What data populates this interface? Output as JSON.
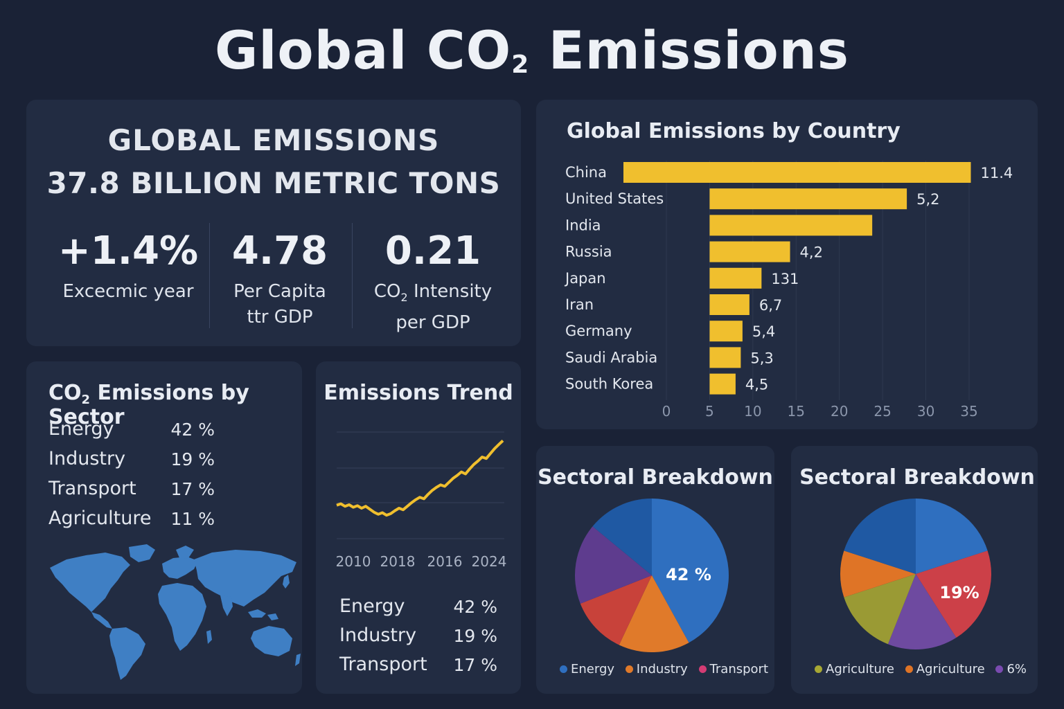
{
  "title_main": "Global CO",
  "title_sub": "2",
  "title_end": " Emissions",
  "summary": {
    "line1": "GLOBAL EMISSIONS",
    "line2": "37.8 BILLION METRIC TONS",
    "kpis": [
      {
        "value": "+1.4%",
        "label1": "Excecmic year",
        "label2": ""
      },
      {
        "value": "4.78",
        "label1": "Per Capita",
        "label2": "ttr GDP"
      },
      {
        "value": "0.21",
        "label1_pre": "CO",
        "label1_sub": "2",
        "label1": " Intensity",
        "label2": "per GDP"
      }
    ]
  },
  "sector": {
    "title_pre": "CO",
    "title_sub": "2",
    "title_post": " Emissions by Sector",
    "rows": [
      {
        "label": "Energy",
        "value": "42 %"
      },
      {
        "label": "Industry",
        "value": "19 %"
      },
      {
        "label": "Transport",
        "value": "17 %"
      },
      {
        "label": "Agriculture",
        "value": "11 %"
      }
    ],
    "map_color": "#3f7fc4"
  },
  "trend": {
    "title": "Emissions Trend",
    "rows": [
      {
        "label": "Energy",
        "value": "42 %"
      },
      {
        "label": "Industry",
        "value": "19 %"
      },
      {
        "label": "Transport",
        "value": "17 %"
      }
    ]
  },
  "chart_data": [
    {
      "type": "bar",
      "orientation": "horizontal",
      "title": "Global Emissions by Country",
      "categories": [
        "China",
        "United States",
        "India",
        "Russia",
        "Japan",
        "Iran",
        "Germany",
        "Saudi Arabia",
        "South Korea"
      ],
      "values": [
        35.2,
        22.8,
        18.8,
        9.3,
        6.0,
        4.6,
        3.8,
        3.6,
        3.0
      ],
      "data_labels": [
        "11.4",
        "5,2",
        "",
        "4,2",
        "131",
        "6,7",
        "5,4",
        "5,3",
        "4,5"
      ],
      "bar_offsets": [
        0,
        5,
        5,
        5,
        5,
        5,
        5,
        5,
        5
      ],
      "x_ticks": [
        "0",
        "5",
        "10",
        "15",
        "20",
        "25",
        "30",
        "35"
      ],
      "xlim": [
        0,
        35
      ],
      "grid": true,
      "color": "#f0bf2e"
    },
    {
      "type": "line",
      "title": "Emissions Trend",
      "x_ticks": [
        "2010",
        "2018",
        "2016",
        "2024"
      ],
      "values": [
        37,
        37.3,
        36.8,
        37.1,
        36.6,
        36.9,
        36.4,
        36.8,
        36.2,
        35.6,
        35.2,
        35.5,
        35.0,
        35.3,
        35.9,
        36.4,
        36.1,
        36.8,
        37.5,
        38.1,
        38.6,
        38.3,
        39.2,
        40.0,
        40.6,
        41.1,
        40.8,
        41.6,
        42.4,
        43.0,
        43.7,
        43.3,
        44.3,
        45.2,
        45.9,
        46.7,
        46.4,
        47.4,
        48.4,
        49.2,
        50.0
      ],
      "ylim": [
        30,
        52
      ],
      "color": "#f0bf2e",
      "grid": true
    },
    {
      "type": "pie",
      "title": "Sectoral Breakdown",
      "slices": [
        {
          "name": "Energy",
          "value": 42,
          "color": "#2f6fbf"
        },
        {
          "name": "Transport-orange",
          "value": 15,
          "color": "#e07a2a"
        },
        {
          "name": "Transport-red",
          "value": 12,
          "color": "#c8423a"
        },
        {
          "name": "Purple",
          "value": 17,
          "color": "#5e3c8e"
        },
        {
          "name": "Navy",
          "value": 14,
          "color": "#1f59a3"
        }
      ],
      "center_label": "42 %",
      "legend": [
        {
          "label": "Energy",
          "color": "#2f6fbf"
        },
        {
          "label": "Industry",
          "color": "#e07a2a"
        },
        {
          "label": "Transport",
          "color": "#d43c74"
        }
      ]
    },
    {
      "type": "pie",
      "title": "Sectoral Breakdown",
      "slices": [
        {
          "name": "Blue",
          "value": 20,
          "color": "#2f6fbf"
        },
        {
          "name": "Red",
          "value": 21,
          "color": "#cc4048"
        },
        {
          "name": "Purple",
          "value": 15,
          "color": "#6e4aa0"
        },
        {
          "name": "Olive",
          "value": 14,
          "color": "#9a9a34"
        },
        {
          "name": "Orange",
          "value": 10,
          "color": "#df7426"
        },
        {
          "name": "Navy",
          "value": 20,
          "color": "#1f59a3"
        }
      ],
      "center_label": "19%",
      "legend": [
        {
          "label": "Agriculture",
          "color": "#a7a834"
        },
        {
          "label": "Agriculture",
          "color": "#df7426"
        },
        {
          "label": "6%",
          "color": "#7a4bb0"
        }
      ]
    }
  ]
}
